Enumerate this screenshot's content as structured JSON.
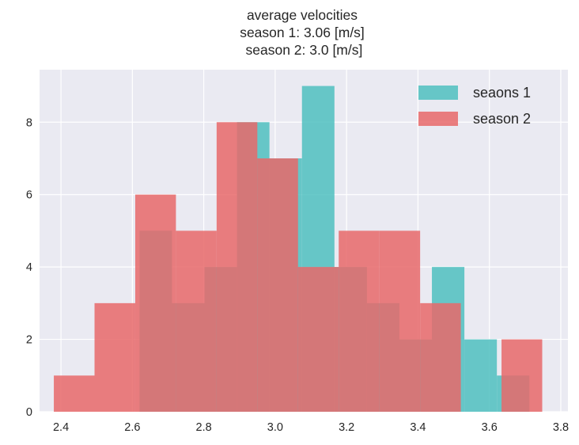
{
  "chart_data": {
    "type": "histogram",
    "title_lines": [
      "average velocities",
      "season 1: 3.06 [m/s]",
      " season 2: 3.0 [m/s]"
    ],
    "xlabel": "",
    "ylabel": "",
    "xlim": [
      2.34,
      3.82
    ],
    "ylim": [
      0,
      9.45
    ],
    "xticks": [
      "2.4",
      "2.6",
      "2.8",
      "3.0",
      "3.2",
      "3.4",
      "3.6",
      "3.8"
    ],
    "yticks": [
      "0",
      "2",
      "4",
      "6",
      "8"
    ],
    "grid": true,
    "legend_position": "top-right",
    "series": [
      {
        "name": "seaons 1",
        "color": "#4fbfc0",
        "bin_edges": [
          2.62,
          2.711,
          2.802,
          2.893,
          2.984,
          3.075,
          3.166,
          3.257,
          3.348,
          3.439,
          3.53,
          3.621,
          3.712
        ],
        "counts": [
          5,
          3,
          4,
          8,
          7,
          9,
          4,
          3,
          2,
          4,
          2,
          1
        ]
      },
      {
        "name": "season 2",
        "color": "#e8686a",
        "bin_edges": [
          2.38,
          2.494,
          2.608,
          2.722,
          2.836,
          2.95,
          3.064,
          3.178,
          3.292,
          3.406,
          3.52,
          3.634,
          3.748
        ],
        "counts": [
          1,
          3,
          6,
          5,
          8,
          7,
          4,
          5,
          5,
          3,
          0,
          2
        ]
      }
    ]
  }
}
